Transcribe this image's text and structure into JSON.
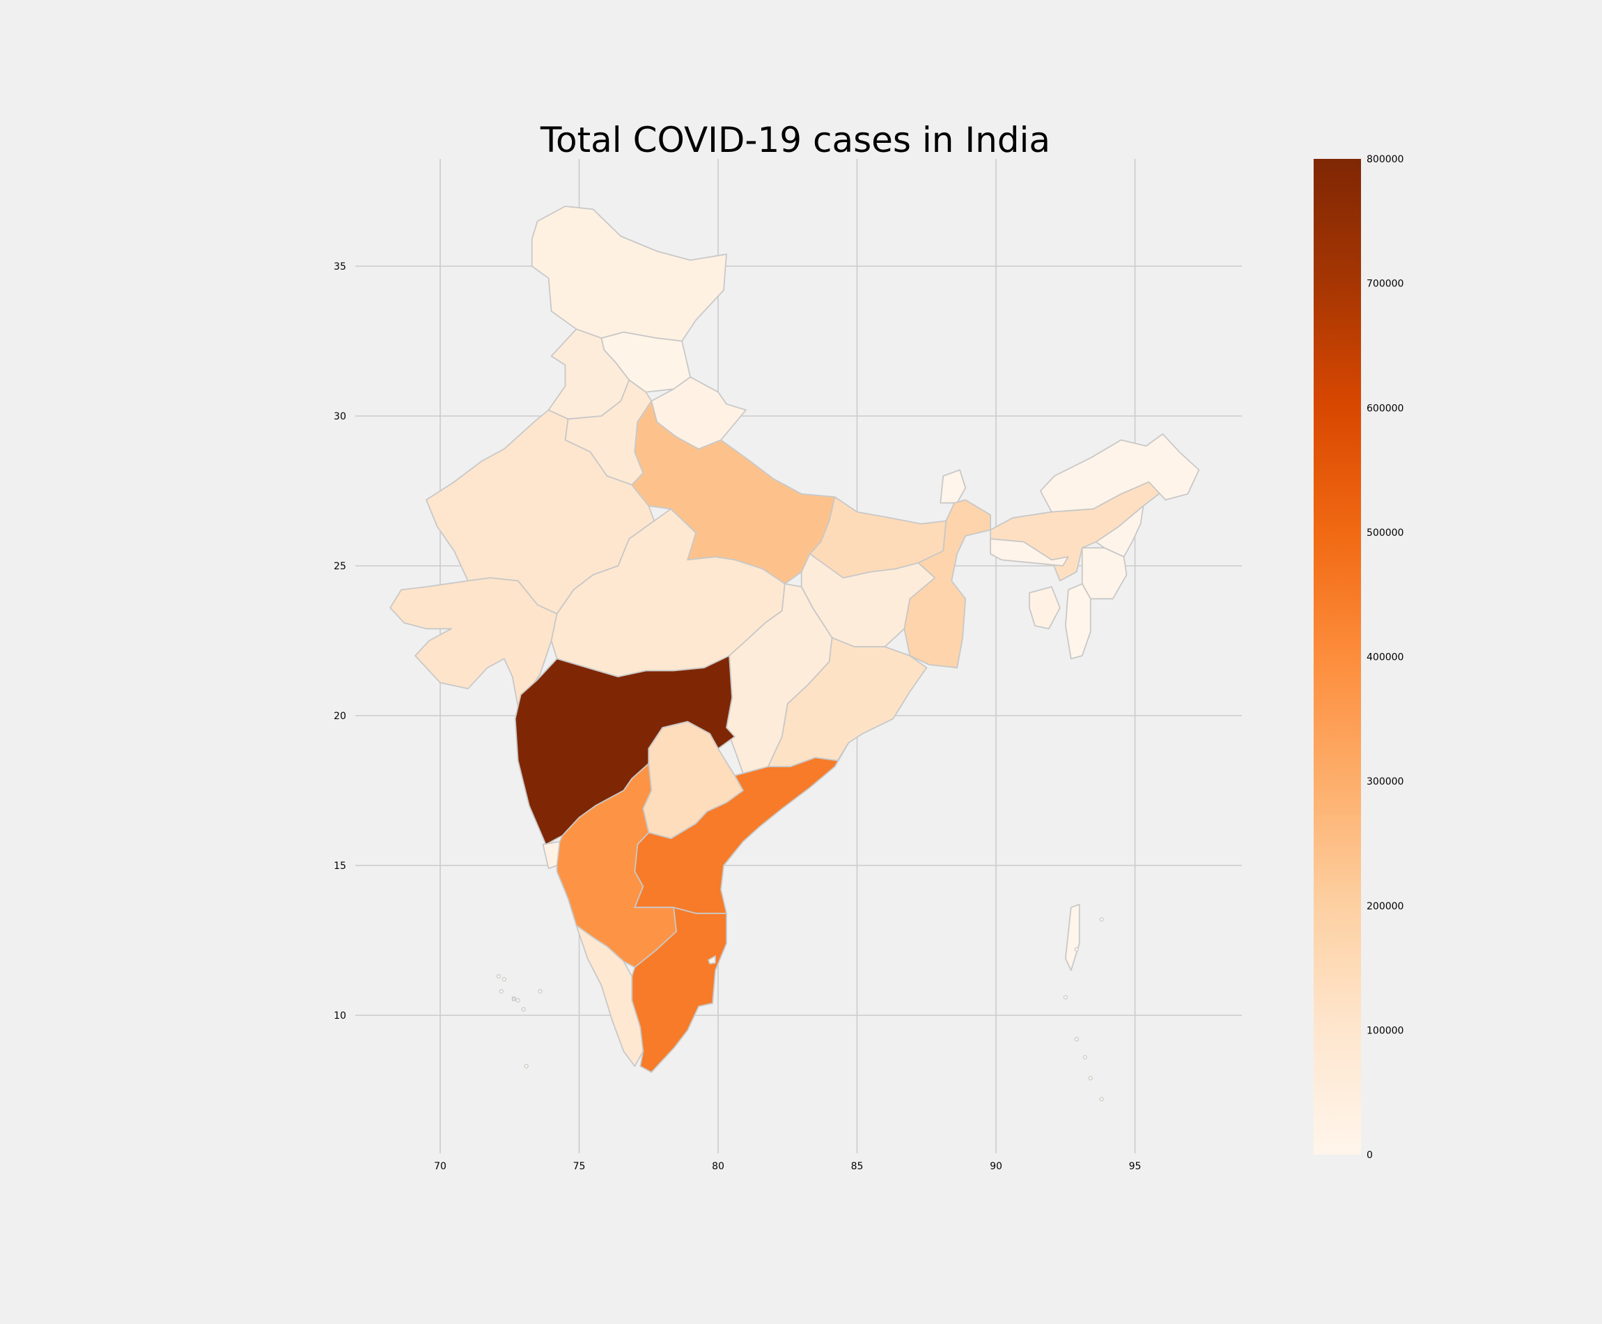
{
  "title": "Total COVID-19 cases in India",
  "chart_data": {
    "type": "choropleth",
    "title": "Total COVID-19 cases in India",
    "xlabel": "",
    "ylabel": "",
    "xlim": [
      65.5,
      98.5
    ],
    "ylim": [
      5.2,
      38.5
    ],
    "x_ticks": [
      70,
      75,
      80,
      85,
      90,
      95
    ],
    "y_ticks": [
      10,
      15,
      20,
      25,
      30,
      35
    ],
    "grid": true,
    "colorbar": {
      "min": 0,
      "max": 800000,
      "ticks": [
        0,
        100000,
        200000,
        300000,
        400000,
        500000,
        600000,
        700000,
        800000
      ],
      "colors": [
        "#fff5eb",
        "#fee6ce",
        "#fdd0a2",
        "#fdae6b",
        "#fd8d3c",
        "#f16913",
        "#d94801",
        "#a63603",
        "#7f2704"
      ]
    },
    "regions": [
      {
        "name": "Jammu and Kashmir",
        "value": 30000
      },
      {
        "name": "Himachal Pradesh",
        "value": 10000
      },
      {
        "name": "Punjab",
        "value": 60000
      },
      {
        "name": "Uttarakhand",
        "value": 20000
      },
      {
        "name": "Haryana",
        "value": 80000
      },
      {
        "name": "Rajasthan",
        "value": 100000
      },
      {
        "name": "Uttar Pradesh",
        "value": 240000
      },
      {
        "name": "Bihar",
        "value": 150000
      },
      {
        "name": "Sikkim",
        "value": 2000
      },
      {
        "name": "West Bengal",
        "value": 180000
      },
      {
        "name": "Assam",
        "value": 130000
      },
      {
        "name": "Arunachal Pradesh",
        "value": 6000
      },
      {
        "name": "Meghalaya",
        "value": 4000
      },
      {
        "name": "Nagaland",
        "value": 5000
      },
      {
        "name": "Manipur",
        "value": 8000
      },
      {
        "name": "Mizoram",
        "value": 1500
      },
      {
        "name": "Tripura",
        "value": 20000
      },
      {
        "name": "Jharkhand",
        "value": 60000
      },
      {
        "name": "Gujarat",
        "value": 110000
      },
      {
        "name": "Madhya Pradesh",
        "value": 90000
      },
      {
        "name": "Chhattisgarh",
        "value": 60000
      },
      {
        "name": "Odisha",
        "value": 120000
      },
      {
        "name": "Maharashtra",
        "value": 800000
      },
      {
        "name": "Telangana",
        "value": 140000
      },
      {
        "name": "Andhra Pradesh",
        "value": 450000
      },
      {
        "name": "Karnataka",
        "value": 380000
      },
      {
        "name": "Goa",
        "value": 20000
      },
      {
        "name": "Kerala",
        "value": 90000
      },
      {
        "name": "Tamil Nadu",
        "value": 450000
      },
      {
        "name": "Puducherry",
        "value": 16000
      },
      {
        "name": "Andaman and Nicobar Islands",
        "value": 3000
      },
      {
        "name": "Lakshadweep",
        "value": 0
      }
    ]
  }
}
